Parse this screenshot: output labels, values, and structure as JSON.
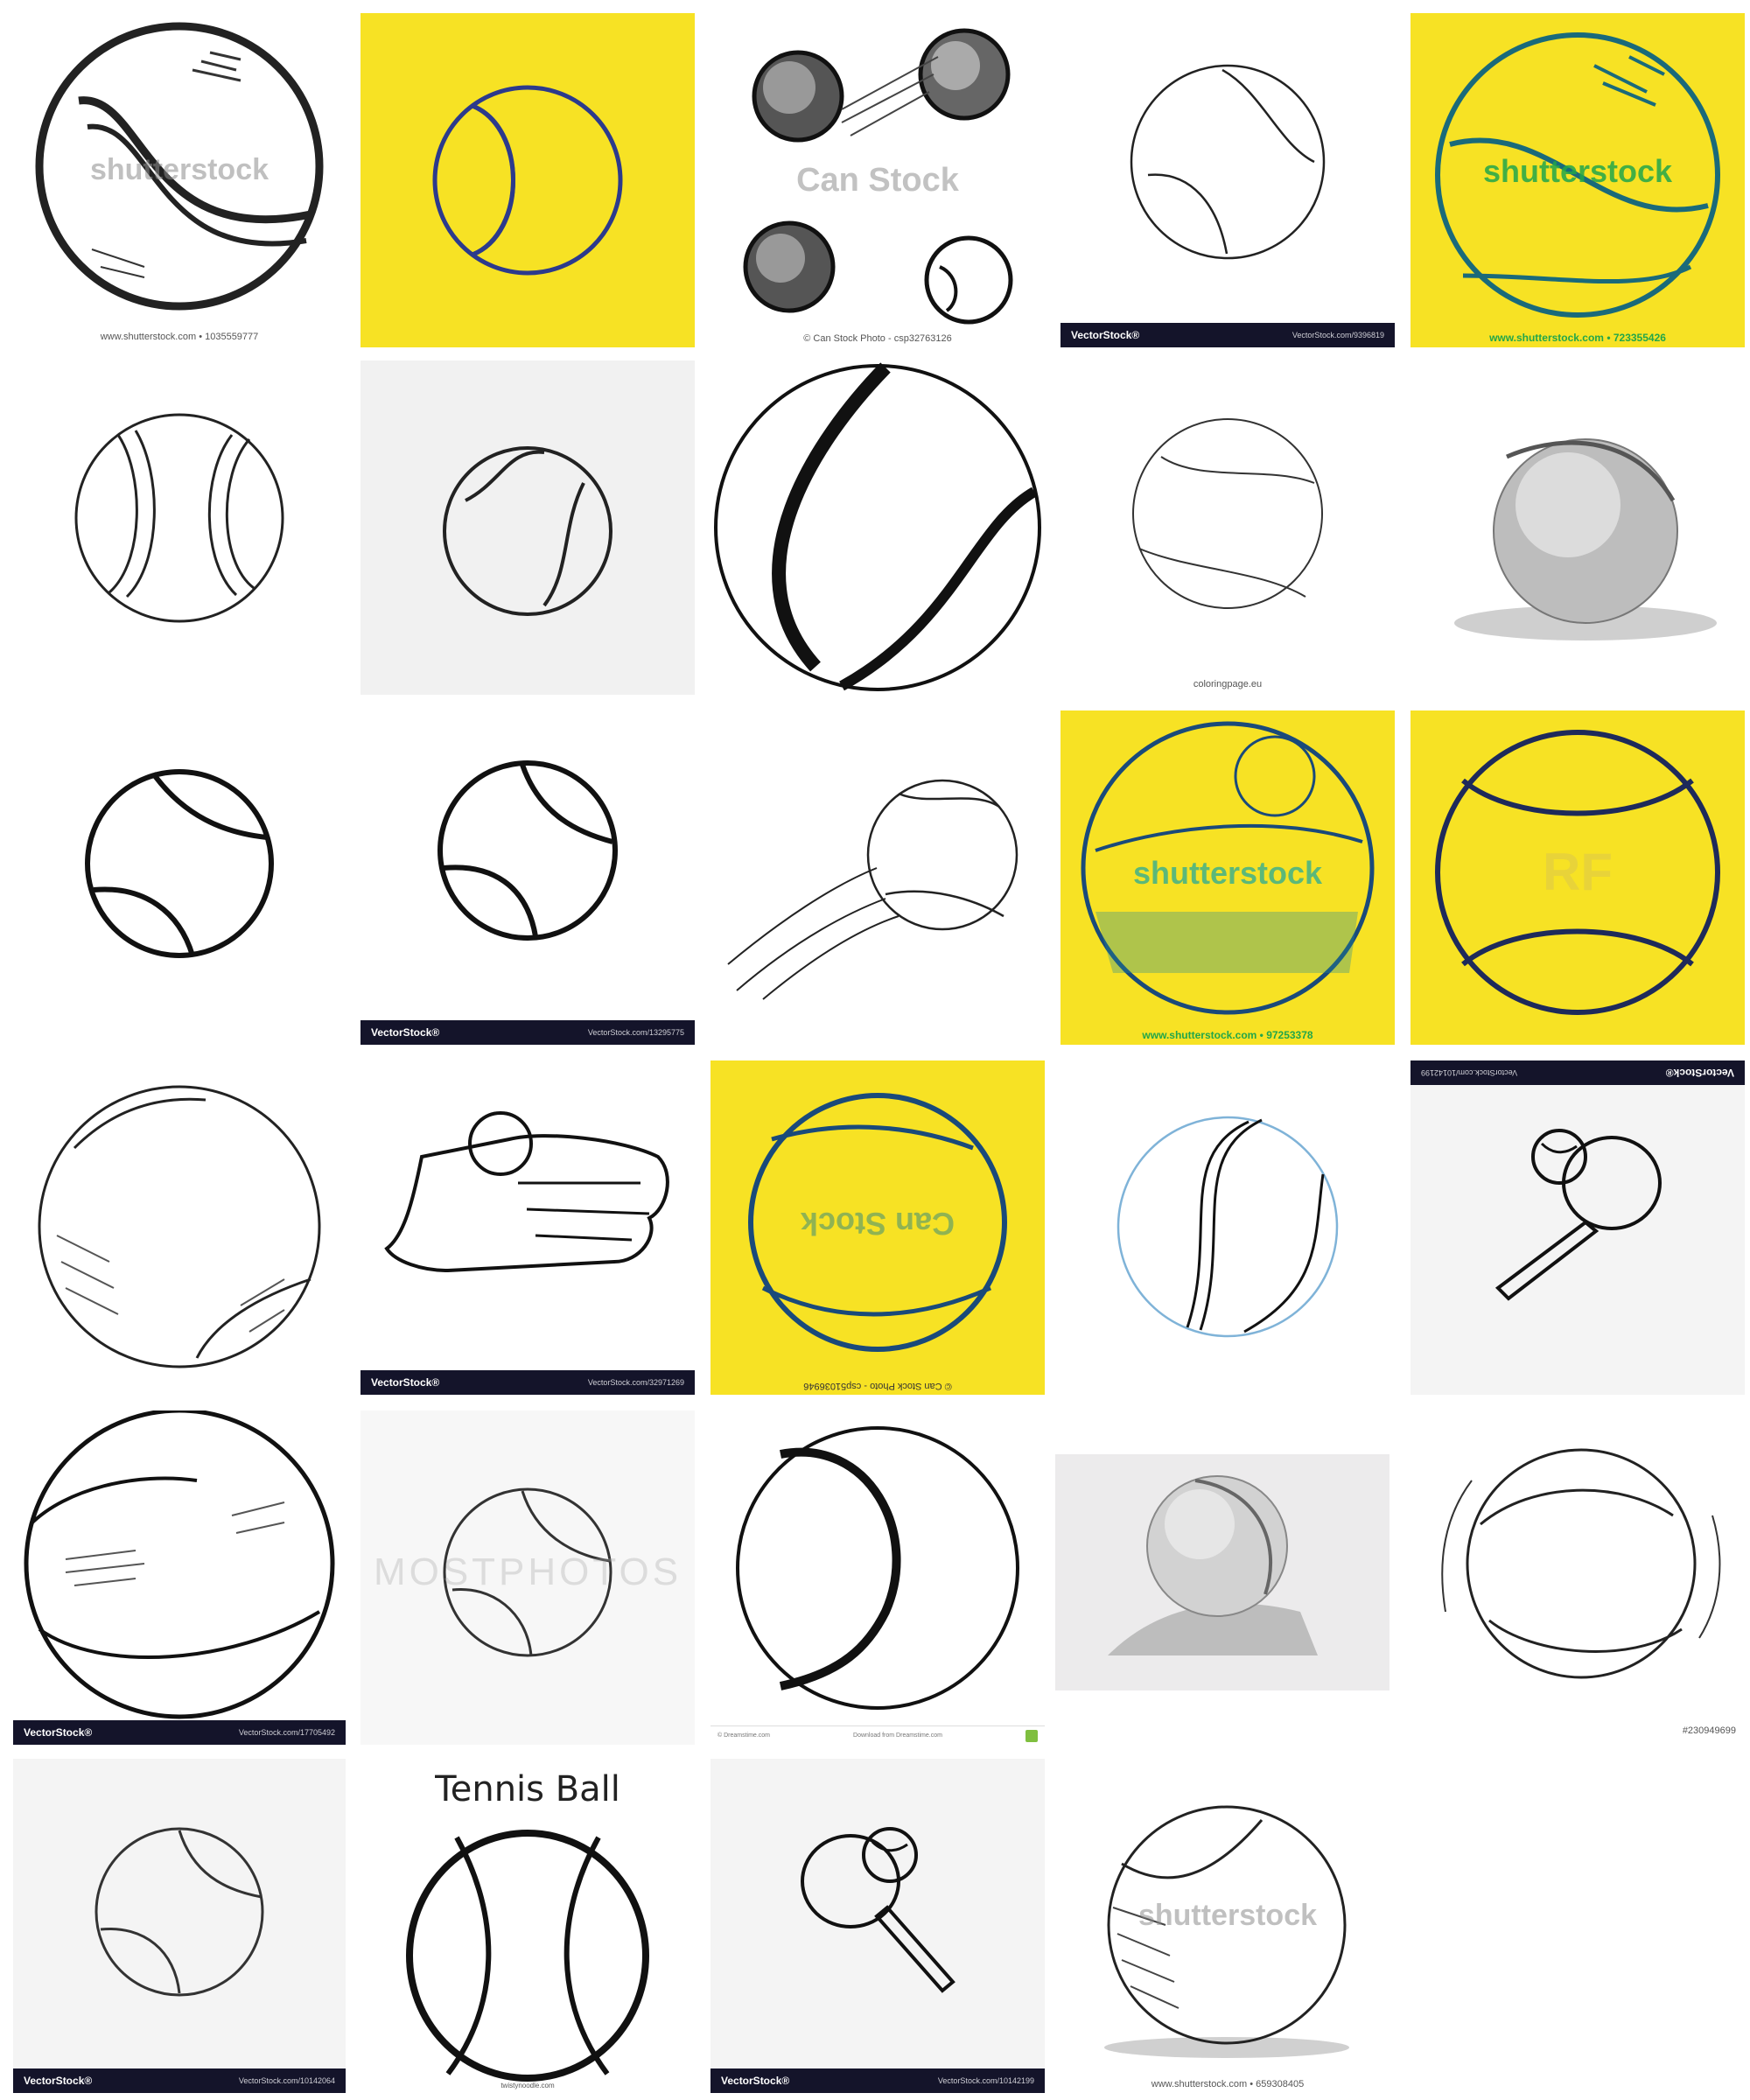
{
  "tiles": {
    "t1": {
      "caption": "www.shutterstock.com • 1035559777",
      "watermark": "shutterstock"
    },
    "t3": {
      "caption": "© Can Stock Photo - csp32763126",
      "watermark": "Can Stock"
    },
    "t4": {
      "logo": "VectorStock®",
      "url": "VectorStock.com/9396819"
    },
    "t5": {
      "caption": "www.shutterstock.com • 723355426",
      "watermark": "shutterstock"
    },
    "t9": {
      "caption": "coloringpage.eu"
    },
    "t12": {
      "logo": "VectorStock®",
      "url": "VectorStock.com/13295775"
    },
    "t14": {
      "caption": "www.shutterstock.com • 97253378",
      "watermark": "shutterstock"
    },
    "t15": {
      "watermark": "RF"
    },
    "t17": {
      "logo": "VectorStock®",
      "url": "VectorStock.com/32971269"
    },
    "t18": {
      "caption": "© Can Stock Photo - csp51036946",
      "watermark": "Can Stock"
    },
    "t20": {
      "logo": "VectorStock®",
      "url": "VectorStock.com/10142199"
    },
    "t21": {
      "logo": "VectorStock®",
      "url": "VectorStock.com/17705492"
    },
    "t22": {
      "watermark": "MOSTPHOTOS"
    },
    "t23": {
      "left_text": "© Dreamstime.com",
      "right_text": "Download from Dreamstime.com"
    },
    "t25": {
      "caption": "#230949699"
    },
    "t26": {
      "logo": "VectorStock®",
      "url": "VectorStock.com/10142064"
    },
    "t27": {
      "title": "Tennis Ball",
      "caption": "twistynoodle.com"
    },
    "t28": {
      "logo": "VectorStock®",
      "url": "VectorStock.com/10142199"
    },
    "t29": {
      "caption": "www.shutterstock.com • 659308405",
      "watermark": "shutterstock"
    }
  }
}
